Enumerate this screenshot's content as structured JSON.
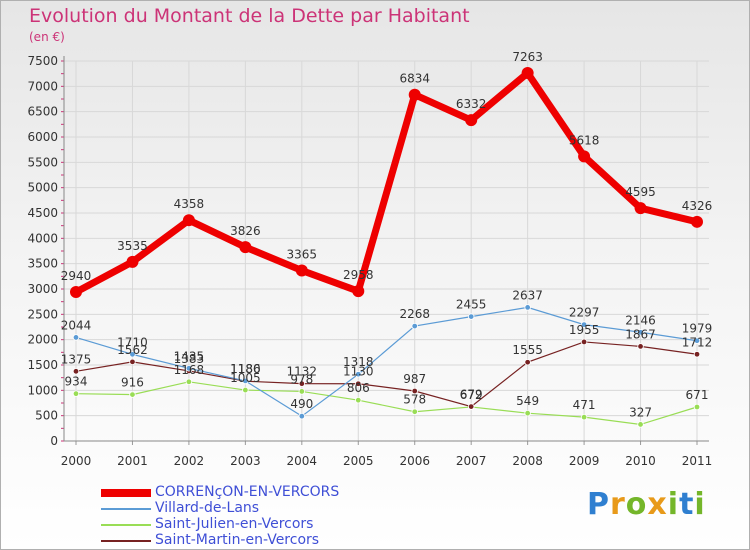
{
  "header": {
    "title": "Evolution du Montant de la Dette par Habitant",
    "unit": "(en €)"
  },
  "brand": {
    "text": "Proxiti"
  },
  "chart_data": {
    "type": "line",
    "title": "Evolution du Montant de la Dette par Habitant",
    "ylabel": "(en €)",
    "x": [
      "2000",
      "2001",
      "2002",
      "2003",
      "2004",
      "2005",
      "2006",
      "2007",
      "2008",
      "2009",
      "2010",
      "2011"
    ],
    "ylim": [
      0,
      7500
    ],
    "yticks": [
      "0",
      "500",
      "1000",
      "1500",
      "2000",
      "2500",
      "3000",
      "3500",
      "4000",
      "4500",
      "5000",
      "5500",
      "6000",
      "6500",
      "7000",
      "7500"
    ],
    "grid": true,
    "legend_position": "bottom-left",
    "series": [
      {
        "name": "CORRENçON-EN-VERCORS",
        "color": "#ee0000",
        "values": [
          2940,
          3535,
          4358,
          3826,
          3365,
          2958,
          6834,
          6332,
          7263,
          5618,
          4595,
          4326
        ],
        "labels": [
          "2940",
          "3535",
          "4358",
          "3826",
          "3365",
          "2958",
          "6834",
          "6332",
          "7263",
          "5618",
          "4595",
          "4326"
        ]
      },
      {
        "name": "Villard-de-Lans",
        "color": "#5b9bd5",
        "values": [
          2044,
          1710,
          1435,
          1186,
          490,
          1318,
          2268,
          2455,
          2637,
          2297,
          2146,
          1979
        ],
        "labels": [
          "2044",
          "1710",
          "1435",
          "1186",
          "490",
          "1318",
          "2268",
          "2455",
          "2637",
          "2297",
          "2146",
          "1979"
        ]
      },
      {
        "name": "Saint-Julien-en-Vercors",
        "color": "#99dd55",
        "values": [
          934,
          916,
          1168,
          1005,
          978,
          806,
          578,
          672,
          549,
          471,
          327,
          671
        ],
        "labels": [
          "934",
          "916",
          "1168",
          "1005",
          "978",
          "806",
          "578",
          "672",
          "549",
          "471",
          "327",
          "671"
        ]
      },
      {
        "name": "Saint-Martin-en-Vercors",
        "color": "#772222",
        "values": [
          1375,
          1562,
          1383,
          1180,
          1132,
          1130,
          987,
          679,
          1555,
          1955,
          1867,
          1712
        ],
        "labels": [
          "1375",
          "1562",
          "1383",
          "1180",
          "1132",
          "1130",
          "987",
          "679",
          "1555",
          "1955",
          "1867",
          "1712"
        ]
      }
    ]
  }
}
